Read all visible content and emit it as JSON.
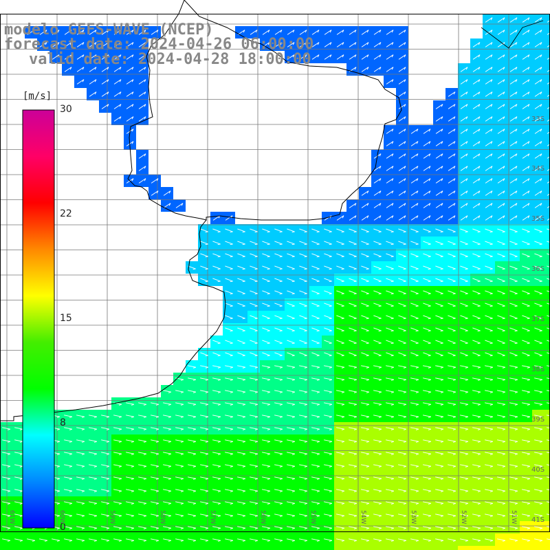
{
  "header": {
    "model_line": "modelo GEFS-WAVE (NCEP)",
    "forecast_line": "forecast date: 2024-04-26 06:00:00",
    "valid_line": "valid date: 2024-04-28 18:00:00"
  },
  "colorbar": {
    "unit": "[m/s]",
    "ticks": [
      "30",
      "22",
      "15",
      "8",
      "0"
    ],
    "range": [
      0,
      30
    ],
    "colors": [
      "#0000ff",
      "#0088ff",
      "#00ffff",
      "#00ff00",
      "#44ee00",
      "#ffff00",
      "#ff8800",
      "#ff0000",
      "#ff0066",
      "#cc0099"
    ]
  },
  "map": {
    "lat_labels": [
      "33S",
      "34S",
      "35S",
      "36S",
      "37S",
      "38S",
      "39S",
      "40S",
      "41S"
    ],
    "lon_labels": [
      "61W",
      "60W",
      "59W",
      "58W",
      "57W",
      "56W",
      "55W",
      "54W",
      "53W",
      "52W",
      "51W"
    ],
    "field": "wind speed with direction arrows",
    "land_color": "#ffffff",
    "coast_color": "#000000"
  }
}
